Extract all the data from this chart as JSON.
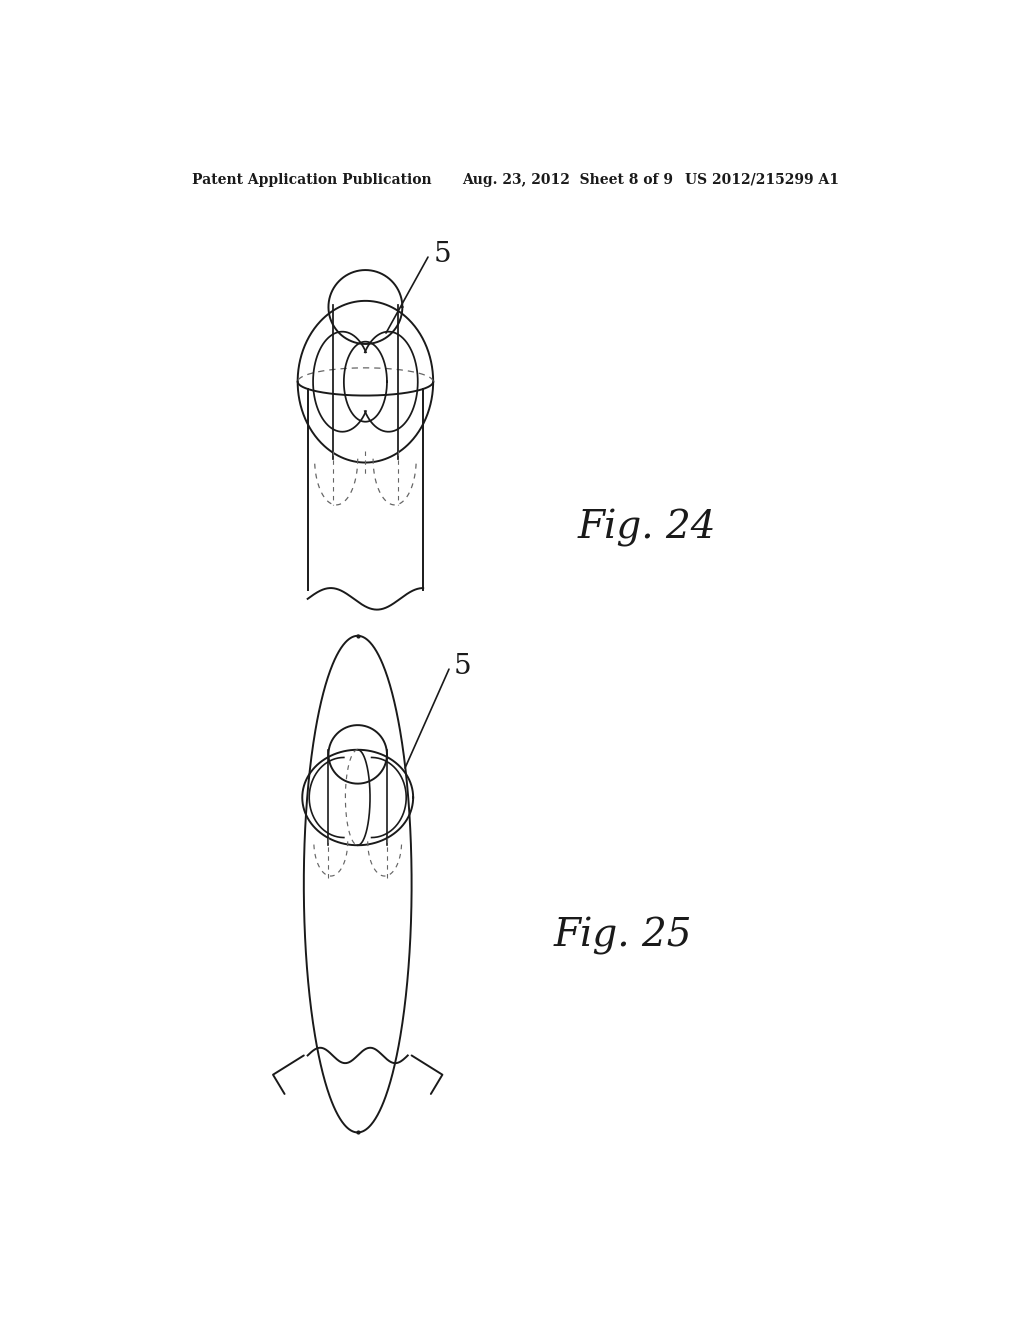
{
  "background_color": "#ffffff",
  "header_left": "Patent Application Publication",
  "header_mid": "Aug. 23, 2012  Sheet 8 of 9",
  "header_right": "US 2012/215299 A1",
  "fig24_label": "Fig. 24",
  "fig25_label": "Fig. 25",
  "label_5": "5",
  "line_color": "#1a1a1a",
  "dashed_color": "#666666",
  "text_color": "#1a1a1a",
  "header_fontsize": 10,
  "fig_label_fontsize": 28,
  "annotation_fontsize": 20
}
